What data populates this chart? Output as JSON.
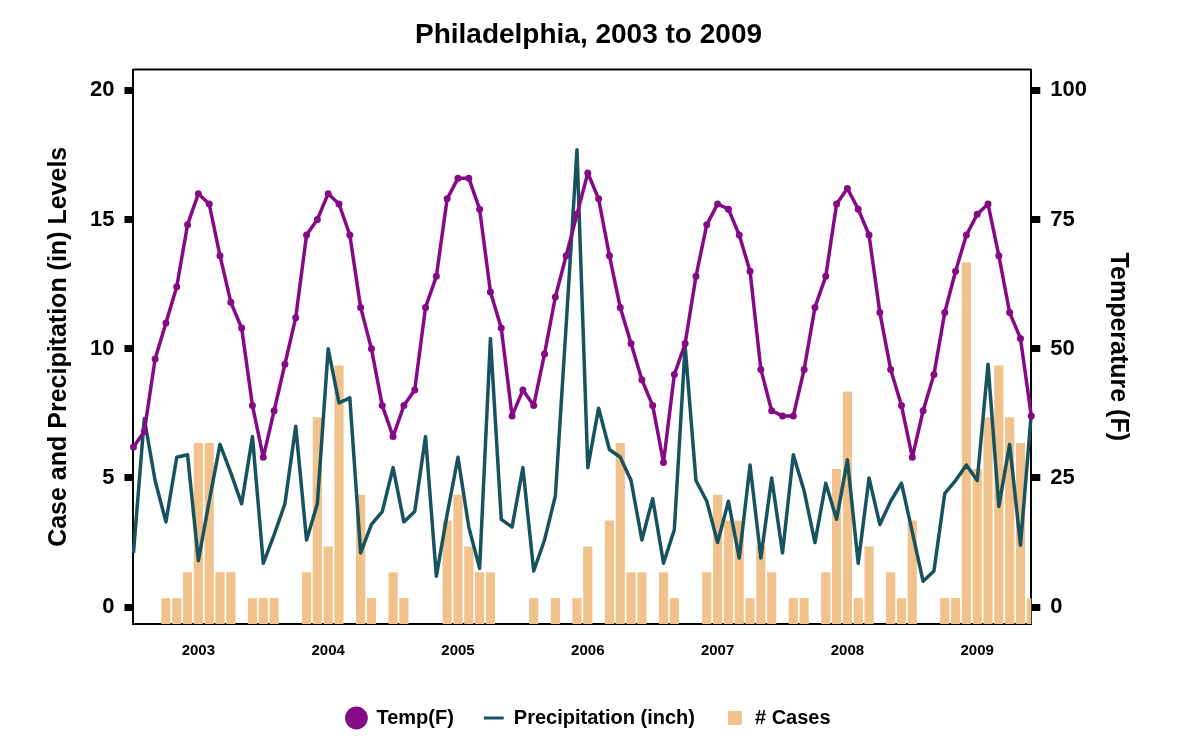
{
  "chart_data": {
    "type": "line",
    "title": "Philadelphia, 2003 to 2009",
    "ylabel": "Case and Precipitation (in) Levels",
    "y2label": "Temperature (F)",
    "categories": [
      null,
      null,
      null,
      null,
      null,
      null,
      "2003",
      null,
      null,
      null,
      null,
      null,
      null,
      null,
      null,
      null,
      null,
      null,
      "2004",
      null,
      null,
      null,
      null,
      null,
      null,
      null,
      null,
      null,
      null,
      null,
      "2005",
      null,
      null,
      null,
      null,
      null,
      null,
      null,
      null,
      null,
      null,
      null,
      "2006",
      null,
      null,
      null,
      null,
      null,
      null,
      null,
      null,
      null,
      null,
      null,
      "2007",
      null,
      null,
      null,
      null,
      null,
      null,
      null,
      null,
      null,
      null,
      null,
      "2008",
      null,
      null,
      null,
      null,
      null,
      null,
      null,
      null,
      null,
      null,
      null,
      "2009",
      null,
      null,
      null,
      null,
      null
    ],
    "ylim": [
      -0.65,
      20.8
    ],
    "yticks": [
      0,
      5,
      10,
      15,
      20
    ],
    "y2lim": [
      -3.25,
      104
    ],
    "y2ticks": [
      0,
      25,
      50,
      75,
      100
    ],
    "grid": false,
    "legend": "bottom",
    "series": [
      {
        "name": "Temp(F)",
        "axis": "y2",
        "color": "#850a85",
        "marker": "circle",
        "values": [
          31,
          34,
          48,
          55,
          62,
          74,
          80,
          78,
          68,
          59,
          54,
          39,
          29,
          38,
          47,
          56,
          72,
          75,
          80,
          78,
          72,
          58,
          50,
          39,
          33,
          39,
          42,
          58,
          64,
          79,
          83,
          83,
          77,
          61,
          54,
          37,
          42,
          39,
          49,
          60,
          68,
          76,
          84,
          79,
          68,
          58,
          51,
          44,
          39,
          28,
          45,
          51,
          64,
          74,
          78,
          77,
          72,
          65,
          46,
          38,
          37,
          37,
          46,
          58,
          64,
          78,
          81,
          77,
          72,
          57,
          46,
          39,
          29,
          38,
          45,
          57,
          65,
          72,
          76,
          78,
          68,
          57,
          52,
          37
        ]
      },
      {
        "name": "Precipitation (inch)",
        "axis": "y",
        "color": "#17535e",
        "marker": "none",
        "values": [
          2.1,
          7.3,
          4.9,
          3.3,
          5.8,
          5.9,
          1.8,
          4.1,
          6.3,
          5.2,
          4.0,
          6.6,
          1.7,
          2.8,
          4.0,
          7.0,
          2.6,
          4.0,
          10.0,
          7.9,
          8.1,
          2.1,
          3.2,
          3.7,
          5.4,
          3.3,
          3.7,
          6.6,
          1.2,
          3.6,
          5.8,
          3.1,
          1.5,
          10.4,
          3.4,
          3.1,
          5.4,
          1.4,
          2.6,
          4.3,
          10.9,
          17.7,
          5.4,
          7.7,
          6.1,
          5.8,
          4.9,
          2.6,
          4.2,
          1.7,
          3.0,
          10.1,
          4.9,
          4.1,
          2.5,
          4.1,
          1.9,
          5.5,
          1.9,
          5.0,
          2.1,
          5.9,
          4.5,
          2.5,
          4.8,
          3.4,
          5.7,
          1.7,
          5.0,
          3.2,
          4.1,
          4.8,
          2.9,
          1.0,
          1.4,
          4.4,
          4.9,
          5.5,
          4.9,
          9.4,
          3.9,
          6.3,
          2.4,
          7.5
        ]
      },
      {
        "name": "# Cases",
        "type": "bar",
        "axis": "y",
        "color": "#f2c28c",
        "values": [
          null,
          null,
          null,
          1,
          1,
          2,
          7,
          7,
          2,
          2,
          null,
          1,
          1,
          1,
          null,
          null,
          2,
          8,
          3,
          10,
          null,
          5,
          1,
          null,
          2,
          1,
          null,
          null,
          null,
          4,
          5,
          3,
          2,
          2,
          null,
          null,
          null,
          1,
          null,
          1,
          null,
          1,
          3,
          null,
          4,
          7,
          2,
          2,
          null,
          2,
          1,
          null,
          null,
          2,
          5,
          4,
          4,
          1,
          3,
          2,
          null,
          1,
          1,
          null,
          2,
          6,
          9,
          1,
          3,
          null,
          2,
          1,
          4,
          null,
          null,
          1,
          1,
          14,
          6,
          8,
          10,
          8,
          7,
          1
        ],
        "base": [
          null,
          null,
          null,
          -0.65,
          -0.65,
          -0.65,
          -0.65,
          -0.65,
          -0.65,
          -0.65,
          null,
          -0.65,
          -0.65,
          -0.65,
          null,
          null,
          -0.65,
          -0.65,
          -0.65,
          -0.65,
          null,
          -0.65,
          -0.65,
          null,
          -0.65,
          -0.65,
          null,
          null,
          null,
          -0.65,
          -0.65,
          -0.65,
          -0.65,
          -0.65,
          null,
          null,
          null,
          -0.65,
          null,
          -0.65,
          null,
          -0.65,
          -0.65,
          null,
          -0.65,
          -0.65,
          -0.65,
          -0.65,
          null,
          -0.65,
          -0.65,
          null,
          null,
          -0.65,
          -0.65,
          -0.65,
          -0.65,
          -0.65,
          -0.65,
          -0.65,
          null,
          -0.65,
          -0.65,
          null,
          -0.65,
          -0.65,
          -0.65,
          -0.65,
          -0.65,
          null,
          -0.65,
          -0.65,
          -0.65,
          null,
          null,
          -0.65,
          -0.65,
          -0.65,
          -0.65,
          -0.65,
          -0.65,
          -0.65,
          -0.65,
          -0.65
        ]
      }
    ]
  }
}
